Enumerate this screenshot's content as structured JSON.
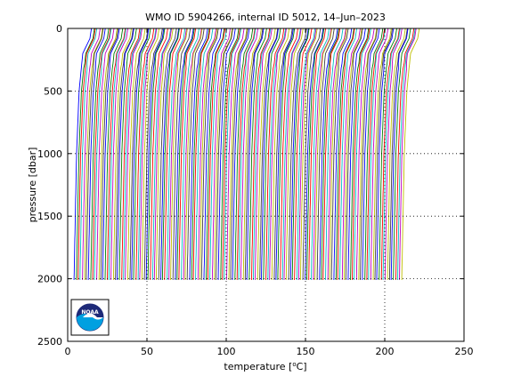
{
  "chart_data": {
    "type": "line",
    "title": "WMO ID 5904266, internal ID 5012, 14–Jun–2023",
    "xlabel": "temperature [°C]",
    "xlabel_main": "temperature [",
    "xlabel_degree": "o",
    "xlabel_unit": "C]",
    "ylabel": "pressure [dbar]",
    "xlim": [
      0,
      250
    ],
    "ylim": [
      2500,
      0
    ],
    "y_reversed": true,
    "xticks": [
      0,
      50,
      100,
      150,
      200,
      250
    ],
    "yticks": [
      0,
      500,
      1000,
      1500,
      2000,
      2500
    ],
    "grid": "dotted",
    "profiles": {
      "count": 160,
      "x_start": 4,
      "x_step": 1.3,
      "surface_pressure": 0,
      "bottom_pressure": 2010,
      "colors": [
        "#0000ff",
        "#008000",
        "#ff0000",
        "#00bfbf",
        "#bf00bf",
        "#bfbf00",
        "#404040"
      ]
    }
  },
  "logo": {
    "text": "NOAA",
    "name": "NOAA"
  }
}
